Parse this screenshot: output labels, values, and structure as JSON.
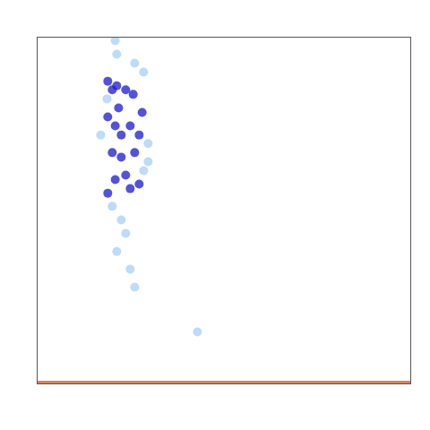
{
  "chart_data": {
    "type": "scatter",
    "xlim": [
      0,
      1
    ],
    "ylim": [
      0,
      1
    ],
    "tick_labels": false,
    "series": [
      {
        "color": "#1a1acc",
        "x": [
          0.189,
          0.201,
          0.213,
          0.237,
          0.257,
          0.189,
          0.209,
          0.225,
          0.249,
          0.273,
          0.201,
          0.225,
          0.261,
          0.237,
          0.209,
          0.249,
          0.273,
          0.189,
          0.218,
          0.281
        ],
        "y": [
          0.873,
          0.848,
          0.86,
          0.848,
          0.835,
          0.77,
          0.744,
          0.718,
          0.744,
          0.718,
          0.667,
          0.654,
          0.667,
          0.602,
          0.589,
          0.563,
          0.576,
          0.55,
          0.796,
          0.783
        ]
      },
      {
        "color": "#a8cff5",
        "x": [
          0.209,
          0.213,
          0.261,
          0.285,
          0.187,
          0.297,
          0.285,
          0.201,
          0.225,
          0.237,
          0.213,
          0.249,
          0.261,
          0.429,
          0.297,
          0.17
        ],
        "y": [
          0.99,
          0.951,
          0.925,
          0.899,
          0.822,
          0.693,
          0.615,
          0.512,
          0.473,
          0.434,
          0.382,
          0.331,
          0.279,
          0.15,
          0.641,
          0.718
        ]
      },
      {
        "type": "line",
        "color": "#d9825b",
        "x": [
          0,
          1
        ],
        "y": [
          0.005,
          0.005
        ]
      }
    ]
  }
}
